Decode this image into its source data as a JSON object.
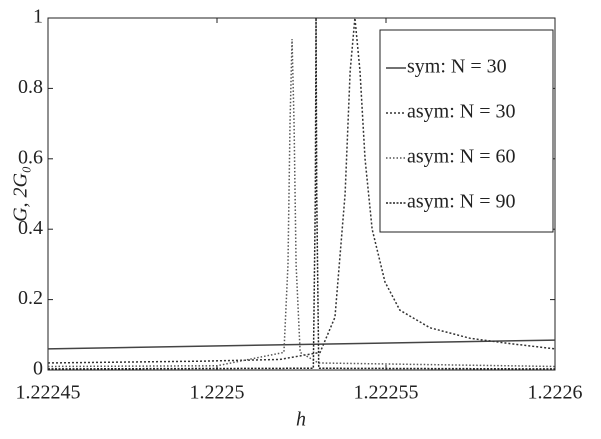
{
  "chart_data": {
    "type": "line",
    "xlabel": "h",
    "ylabel": "G, 2G₀",
    "xlim": [
      1.22245,
      1.2226
    ],
    "xticks": [
      1.22245,
      1.2225,
      1.22255,
      1.2226
    ],
    "ylim": [
      0,
      1
    ],
    "yticks": [
      0,
      0.2,
      0.4,
      0.6,
      0.8,
      1
    ],
    "grid": false,
    "legend": "upper right",
    "series": [
      {
        "name": "sym: N = 30",
        "color": "#444444",
        "dash": "none",
        "x": [
          1.22245,
          1.2226
        ],
        "values": [
          0.06,
          0.085
        ]
      },
      {
        "name": "asym: N = 30",
        "color": "#333333",
        "dash": "2,2",
        "x": [
          1.22245,
          1.222495,
          1.2225186,
          1.2225305,
          1.2225349,
          1.2225379,
          1.2225394,
          1.2225408,
          1.2225423,
          1.2225438,
          1.2225459,
          1.2225497,
          1.2225541,
          1.222563,
          1.2225749,
          1.2225867,
          1.2226
        ],
        "values": [
          0.02,
          0.025,
          0.03,
          0.05,
          0.15,
          0.5,
          0.85,
          1.0,
          0.85,
          0.6,
          0.4,
          0.25,
          0.17,
          0.12,
          0.09,
          0.075,
          0.06
        ]
      },
      {
        "name": "asym: N = 60",
        "color": "#555555",
        "dash": "1.5,2",
        "x": [
          1.22245,
          1.2225,
          1.2225198,
          1.222521,
          1.2225216,
          1.2225222,
          1.2225228,
          1.2225234,
          1.2225246,
          1.22253,
          1.2226
        ],
        "values": [
          0.01,
          0.012,
          0.05,
          0.3,
          0.7,
          0.94,
          0.7,
          0.3,
          0.05,
          0.02,
          0.01
        ]
      },
      {
        "name": "asym: N = 90",
        "color": "#222222",
        "dash": "2,1.5",
        "x": [
          1.22245,
          1.2225285,
          1.2225291,
          1.2225293,
          1.2225295,
          1.2225301,
          1.2226
        ],
        "values": [
          0.003,
          0.005,
          0.5,
          1,
          0.5,
          0.005,
          0.003
        ]
      }
    ]
  }
}
